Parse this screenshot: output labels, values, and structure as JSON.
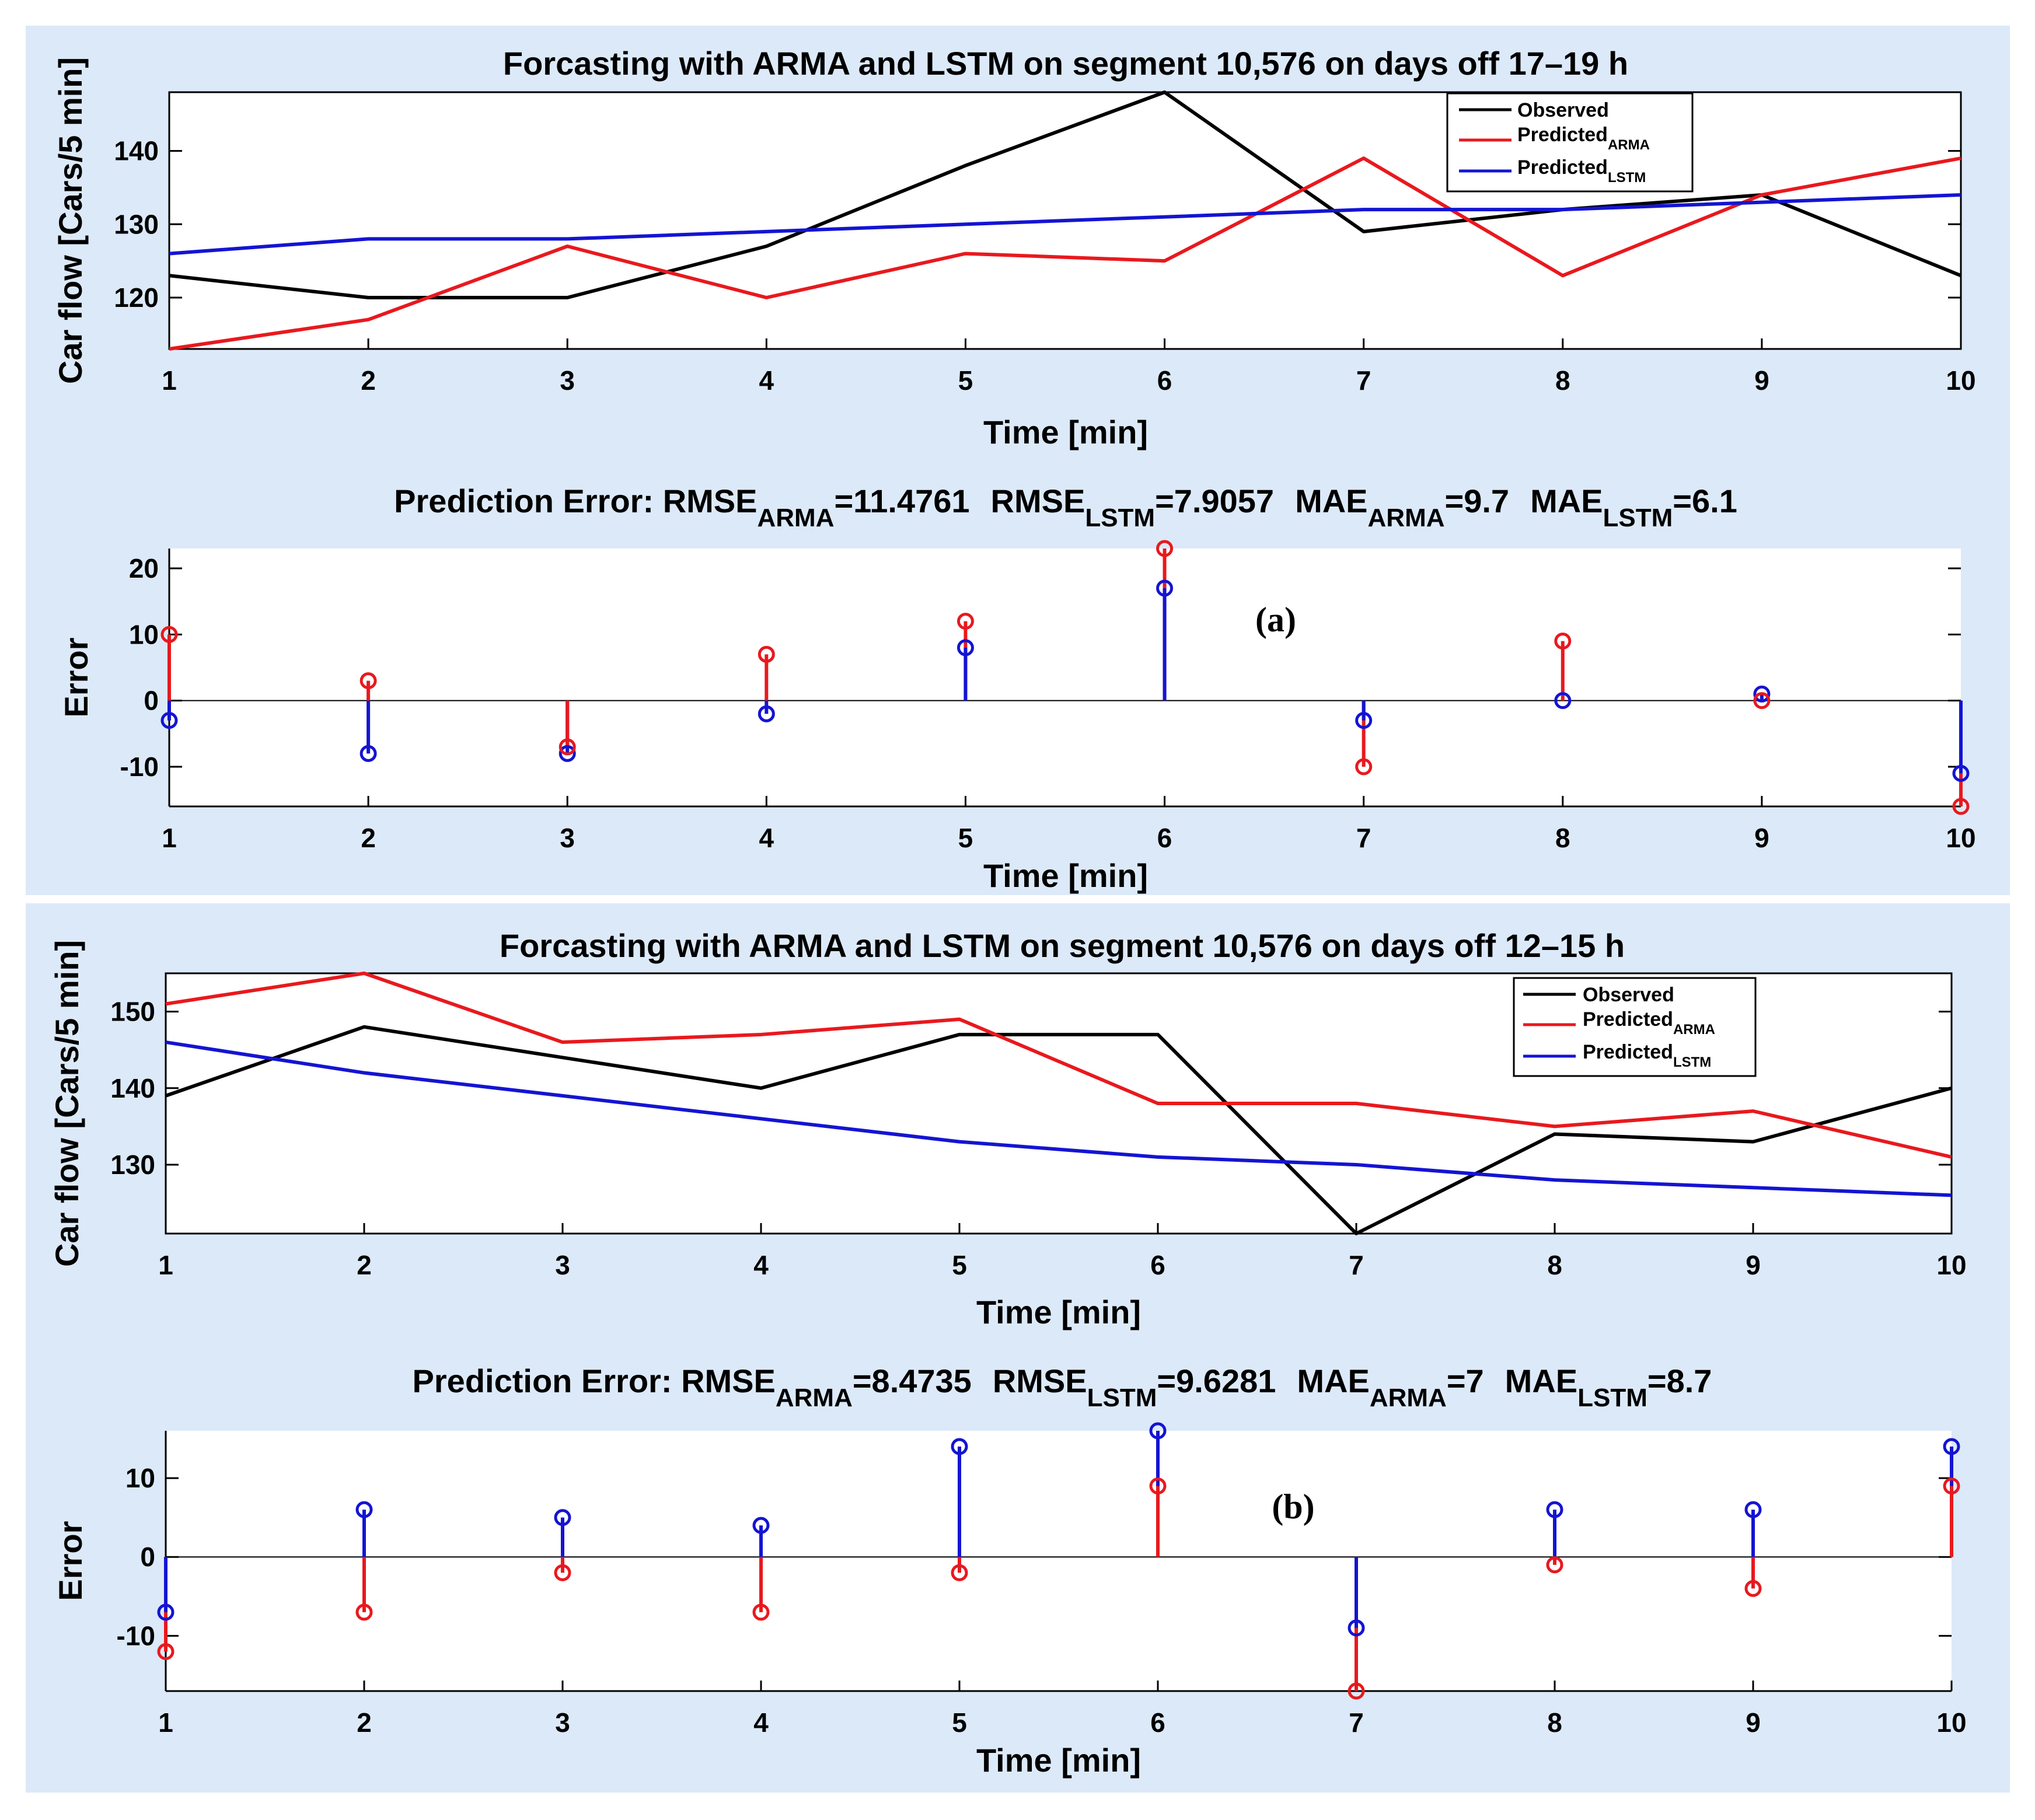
{
  "colors": {
    "panel_bg": "#dce9f8",
    "plot_bg": "#ffffff",
    "observed": "#000000",
    "arma": "#e8191e",
    "lstm": "#1414d2"
  },
  "panels": [
    {
      "label": "(a)",
      "line": {
        "title": "Forcasting with ARMA and LSTM on segment 10,576 on days off 17–19 h",
        "xlabel": "Time [min]",
        "ylabel": "Car flow [Cars/5 min]",
        "ylim": [
          113,
          148
        ],
        "yticks": [
          120,
          130,
          140
        ]
      },
      "error": {
        "title": {
          "prefix": "Prediction Error: ",
          "rmse_arma": "RMSE",
          "rmse_arma_sub": "ARMA",
          "rmse_arma_val": "=11.4761",
          "rmse_lstm": "RMSE",
          "rmse_lstm_sub": "LSTM",
          "rmse_lstm_val": "=7.9057",
          "mae_arma": "MAE",
          "mae_arma_sub": "ARMA",
          "mae_arma_val": "=9.7",
          "mae_lstm": "MAE",
          "mae_lstm_sub": "LSTM",
          "mae_lstm_val": "=6.1"
        },
        "xlabel": "Time [min]",
        "ylabel": "Error",
        "ylim": [
          -16,
          23
        ],
        "yticks": [
          -10,
          0,
          10,
          20
        ]
      }
    },
    {
      "label": "(b)",
      "line": {
        "title": "Forcasting with ARMA and LSTM on segment 10,576 on days off 12–15 h",
        "xlabel": "Time [min]",
        "ylabel": "Car flow [Cars/5 min]",
        "ylim": [
          121,
          155
        ],
        "yticks": [
          130,
          140,
          150
        ]
      },
      "error": {
        "title": {
          "prefix": "Prediction Error: ",
          "rmse_arma": "RMSE",
          "rmse_arma_sub": "ARMA",
          "rmse_arma_val": "=8.4735",
          "rmse_lstm": "RMSE",
          "rmse_lstm_sub": "LSTM",
          "rmse_lstm_val": "=9.6281",
          "mae_arma": "MAE",
          "mae_arma_sub": "ARMA",
          "mae_arma_val": "=7",
          "mae_lstm": "MAE",
          "mae_lstm_sub": "LSTM",
          "mae_lstm_val": "=8.7"
        },
        "xlabel": "Time [min]",
        "ylabel": "Error",
        "ylim": [
          -17,
          16
        ],
        "yticks": [
          -10,
          0,
          10
        ]
      }
    }
  ],
  "legend": {
    "observed": "Observed",
    "arma": "Predicted",
    "arma_sub": "ARMA",
    "lstm": "Predicted",
    "lstm_sub": "LSTM"
  },
  "chart_data": [
    {
      "type": "line",
      "title": "Forcasting with ARMA and LSTM on segment 10,576 on days off 17–19 h",
      "xlabel": "Time [min]",
      "ylabel": "Car flow [Cars/5 min]",
      "x": [
        1,
        2,
        3,
        4,
        5,
        6,
        7,
        8,
        9,
        10
      ],
      "xlim": [
        1,
        10
      ],
      "ylim": [
        113,
        148
      ],
      "legend_position": "top-right",
      "series": [
        {
          "name": "Observed",
          "color": "#000000",
          "values": [
            123,
            120,
            120,
            127,
            138,
            148,
            129,
            132,
            134,
            123
          ]
        },
        {
          "name": "Predicted_ARMA",
          "color": "#e8191e",
          "values": [
            113,
            117,
            127,
            120,
            126,
            125,
            139,
            123,
            134,
            139
          ]
        },
        {
          "name": "Predicted_LSTM",
          "color": "#1414d2",
          "values": [
            126,
            128,
            128,
            129,
            130,
            131,
            132,
            132,
            133,
            134
          ]
        }
      ]
    },
    {
      "type": "stem",
      "title": "Prediction Error: RMSE_ARMA=11.4761  RMSE_LSTM=7.9057  MAE_ARMA=9.7  MAE_LSTM=6.1",
      "xlabel": "Time [min]",
      "ylabel": "Error",
      "x": [
        1,
        2,
        3,
        4,
        5,
        6,
        7,
        8,
        9,
        10
      ],
      "xlim": [
        1,
        10
      ],
      "ylim": [
        -16,
        23
      ],
      "series": [
        {
          "name": "ARMA error",
          "color": "#e8191e",
          "values": [
            10,
            3,
            -7,
            7,
            12,
            23,
            -10,
            9,
            0,
            -16
          ]
        },
        {
          "name": "LSTM error",
          "color": "#1414d2",
          "values": [
            -3,
            -8,
            -8,
            -2,
            8,
            17,
            -3,
            0,
            1,
            -11
          ]
        }
      ]
    },
    {
      "type": "line",
      "title": "Forcasting with ARMA and LSTM on segment 10,576 on days off 12–15 h",
      "xlabel": "Time [min]",
      "ylabel": "Car flow [Cars/5 min]",
      "x": [
        1,
        2,
        3,
        4,
        5,
        6,
        7,
        8,
        9,
        10
      ],
      "xlim": [
        1,
        10
      ],
      "ylim": [
        121,
        155
      ],
      "legend_position": "top-right",
      "series": [
        {
          "name": "Observed",
          "color": "#000000",
          "values": [
            139,
            148,
            144,
            140,
            147,
            147,
            121,
            134,
            133,
            140
          ]
        },
        {
          "name": "Predicted_ARMA",
          "color": "#e8191e",
          "values": [
            151,
            155,
            146,
            147,
            149,
            138,
            138,
            135,
            137,
            131
          ]
        },
        {
          "name": "Predicted_LSTM",
          "color": "#1414d2",
          "values": [
            146,
            142,
            139,
            136,
            133,
            131,
            130,
            128,
            127,
            126
          ]
        }
      ]
    },
    {
      "type": "stem",
      "title": "Prediction Error: RMSE_ARMA=8.4735  RMSE_LSTM=9.6281  MAE_ARMA=7  MAE_LSTM=8.7",
      "xlabel": "Time [min]",
      "ylabel": "Error",
      "x": [
        1,
        2,
        3,
        4,
        5,
        6,
        7,
        8,
        9,
        10
      ],
      "xlim": [
        1,
        10
      ],
      "ylim": [
        -17,
        16
      ],
      "series": [
        {
          "name": "ARMA error",
          "color": "#e8191e",
          "values": [
            -12,
            -7,
            -2,
            -7,
            -2,
            9,
            -17,
            -1,
            -4,
            9
          ]
        },
        {
          "name": "LSTM error",
          "color": "#1414d2",
          "values": [
            -7,
            6,
            5,
            4,
            14,
            16,
            -9,
            6,
            6,
            14
          ]
        }
      ]
    }
  ]
}
